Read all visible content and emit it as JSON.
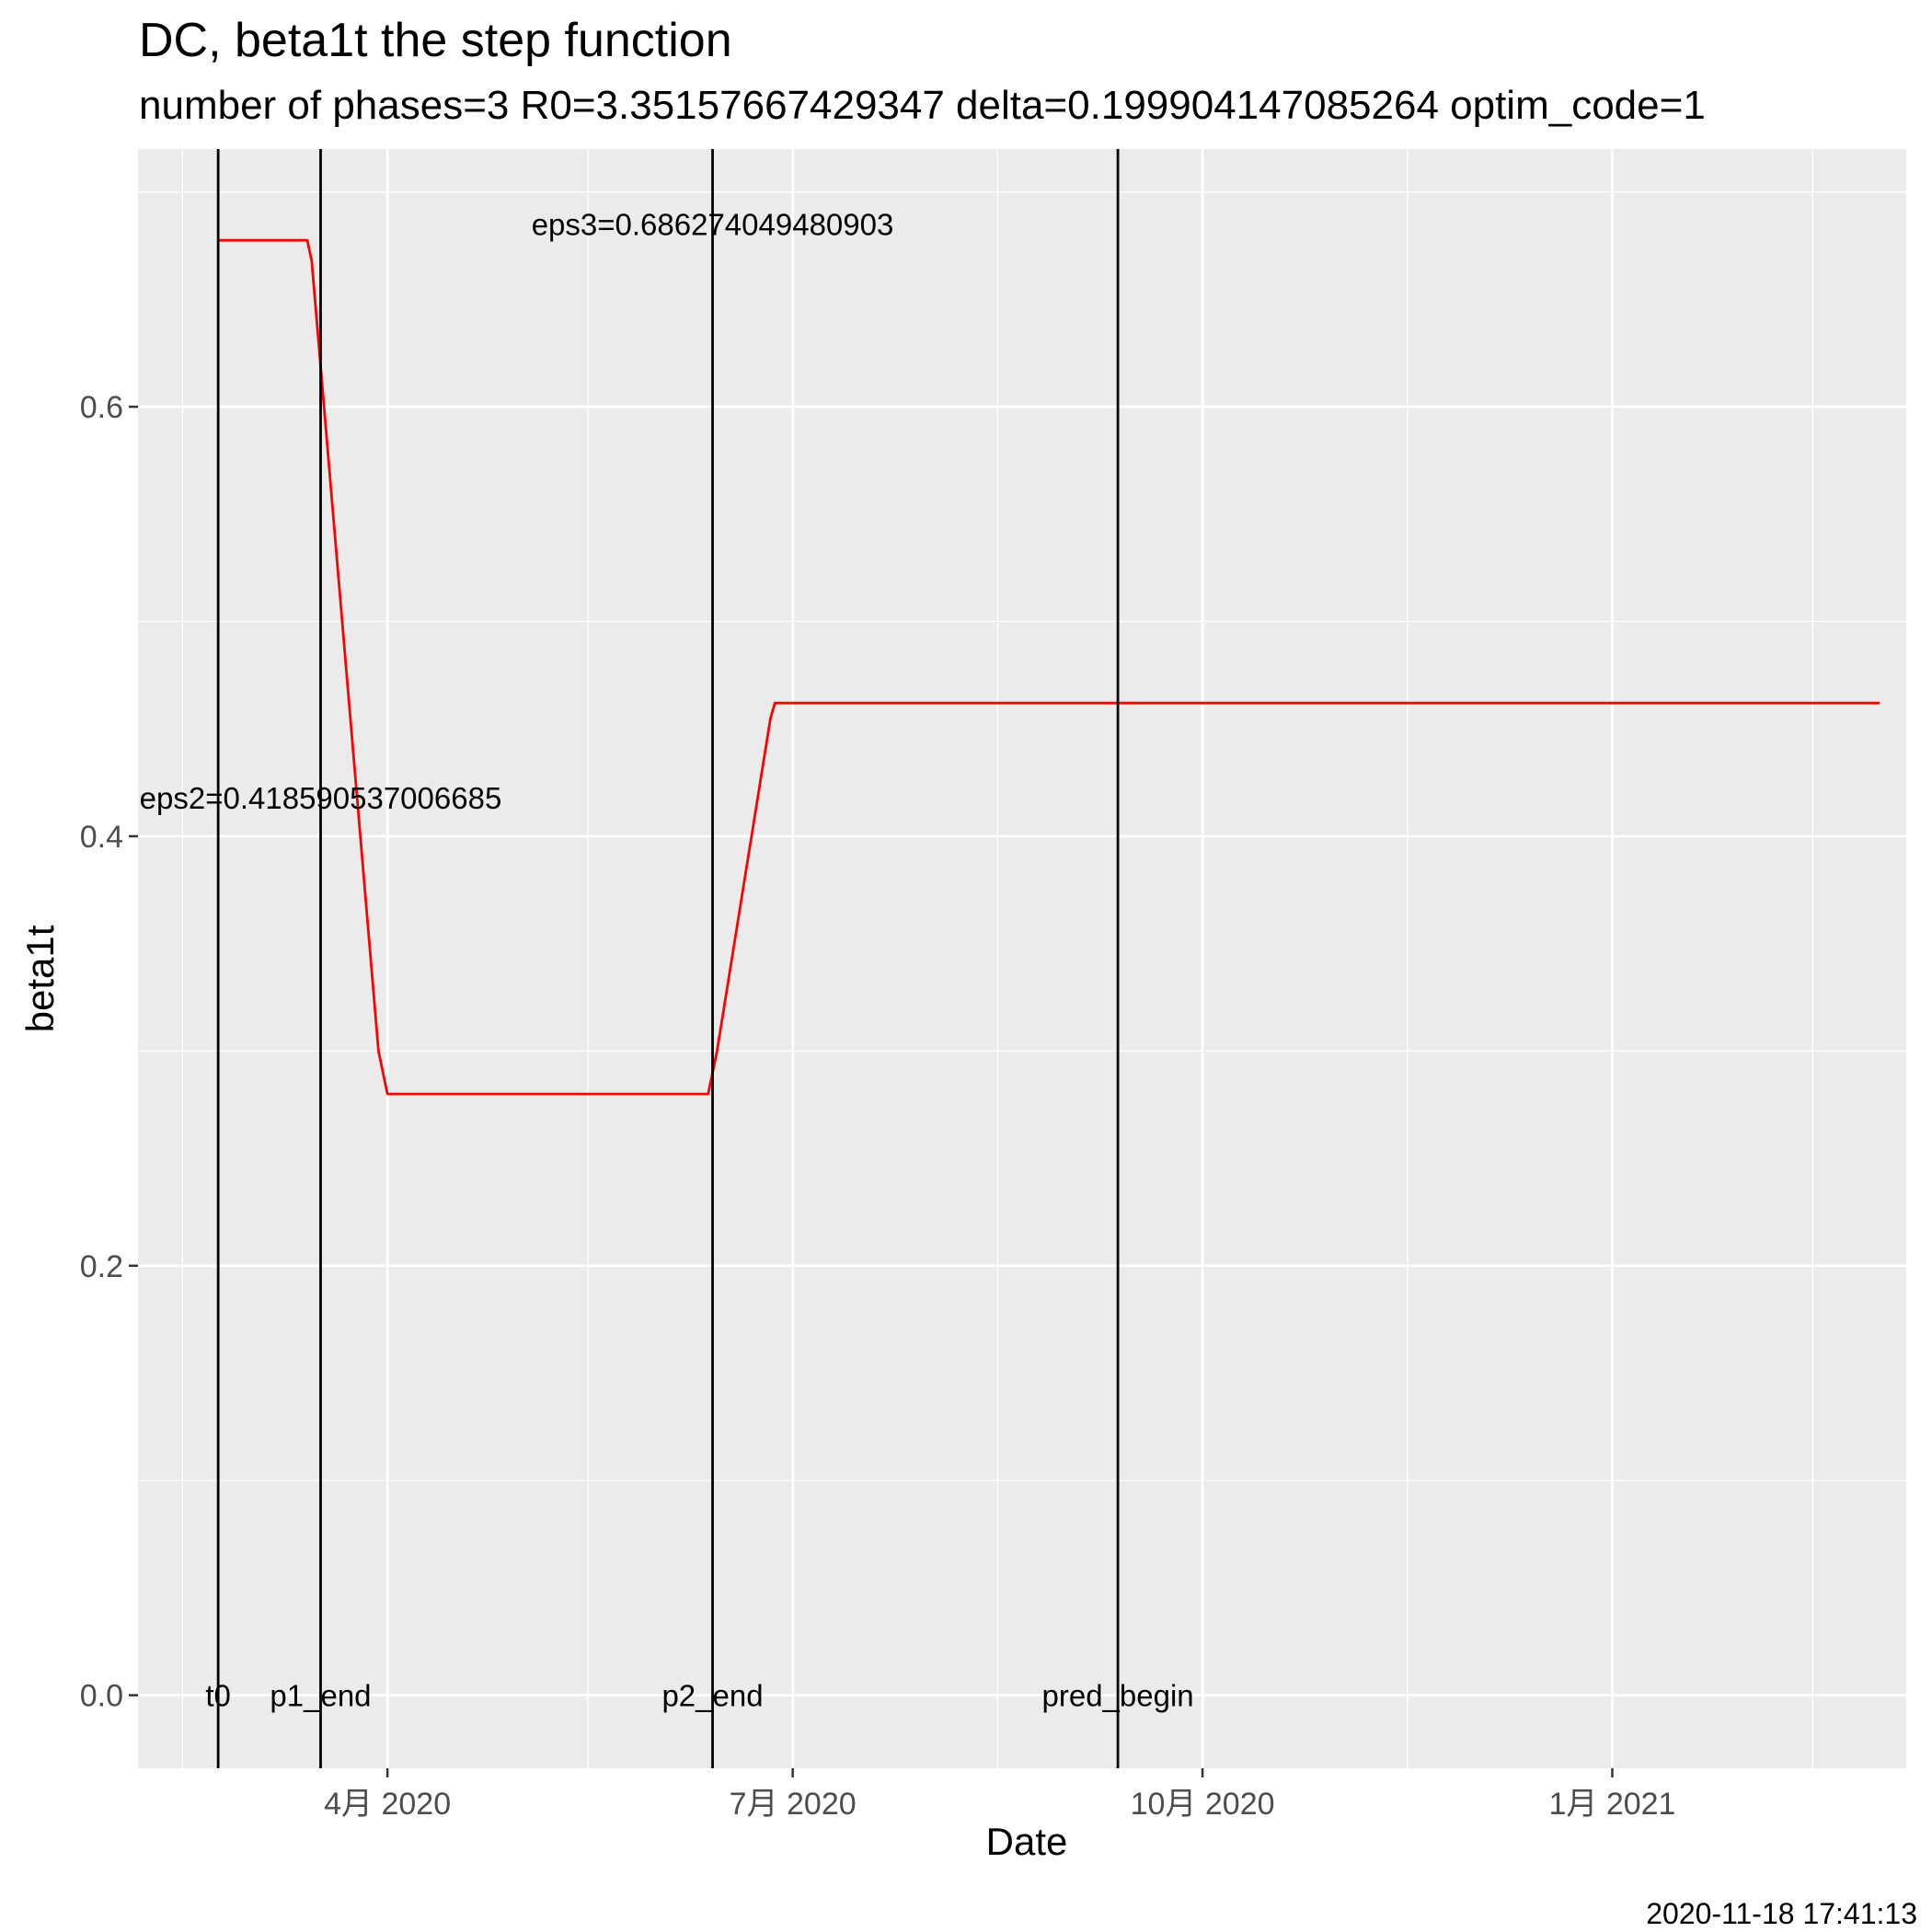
{
  "chart_data": {
    "type": "line",
    "title": "DC, beta1t the step function",
    "subtitle": "number of phases=3   R0=3.35157667429347   delta=0.199904147085264   optim_code=1",
    "xlabel": "Date",
    "ylabel": "beta1t",
    "x_ticks": [
      {
        "date": "2020-04-01",
        "label": "4月 2020"
      },
      {
        "date": "2020-07-01",
        "label": "7月 2020"
      },
      {
        "date": "2020-10-01",
        "label": "10月 2020"
      },
      {
        "date": "2021-01-01",
        "label": "1月 2021"
      }
    ],
    "x_minor_ticks": [
      "2020-02-15",
      "2020-05-16",
      "2020-08-16",
      "2020-11-16",
      "2021-02-15"
    ],
    "xlim": [
      "2020-02-05",
      "2021-03-08"
    ],
    "y_ticks": [
      0.0,
      0.2,
      0.4,
      0.6
    ],
    "y_tick_labels": [
      "0.0",
      "0.2",
      "0.4",
      "0.6"
    ],
    "ylim": [
      -0.034,
      0.72
    ],
    "grid": true,
    "series": [
      {
        "color": "#ff0000",
        "points": [
          [
            "2020-02-23",
            0.6775
          ],
          [
            "2020-03-14",
            0.6775
          ],
          [
            "2020-03-15",
            0.668
          ],
          [
            "2020-03-30",
            0.3
          ],
          [
            "2020-04-01",
            0.28
          ],
          [
            "2020-06-12",
            0.28
          ],
          [
            "2020-06-14",
            0.3
          ],
          [
            "2020-06-26",
            0.455
          ],
          [
            "2020-06-27",
            0.462
          ],
          [
            "2021-03-02",
            0.462
          ]
        ]
      }
    ],
    "vlines": [
      {
        "date": "2020-02-23",
        "label": "t0"
      },
      {
        "date": "2020-03-17",
        "label": "p1_end"
      },
      {
        "date": "2020-06-13",
        "label": "p2_end"
      },
      {
        "date": "2020-09-12",
        "label": "pred_begin"
      }
    ],
    "annotations": [
      {
        "date": "2020-03-17",
        "y": 0.418,
        "text": "eps2=0.418590537006685"
      },
      {
        "date": "2020-06-13",
        "y": 0.685,
        "text": "eps3=0.686274049480903"
      }
    ]
  },
  "footer": {
    "timestamp": "2020-11-18 17:41:13"
  },
  "colors": {
    "panel": "#ebebeb",
    "grid_major": "#ffffff",
    "line": "#ff0000",
    "vline": "#000000",
    "axis_text": "#4d4d4d"
  }
}
